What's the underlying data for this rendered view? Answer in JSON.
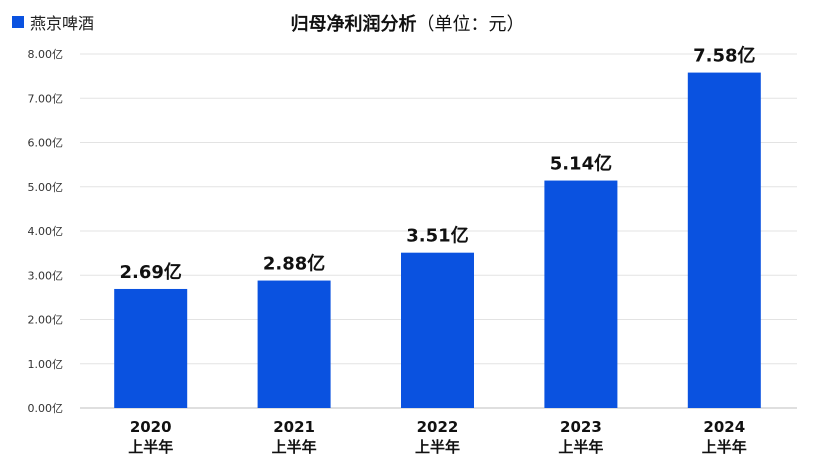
{
  "chart_data": {
    "type": "bar",
    "title": "归母净利润分析",
    "subtitle": "（单位：元）",
    "legend_position": "top-left",
    "grid": true,
    "series": [
      {
        "name": "燕京啤酒",
        "color": "#0a52e0",
        "values": [
          2.69,
          2.88,
          3.51,
          5.14,
          7.58
        ]
      }
    ],
    "categories": [
      [
        "2020",
        "上半年"
      ],
      [
        "2021",
        "上半年"
      ],
      [
        "2022",
        "上半年"
      ],
      [
        "2023",
        "上半年"
      ],
      [
        "2024",
        "上半年"
      ]
    ],
    "data_labels": [
      "2.69亿",
      "2.88亿",
      "3.51亿",
      "5.14亿",
      "7.58亿"
    ],
    "ylim": [
      0,
      8
    ],
    "y_ticks": [
      "0.00亿",
      "1.00亿",
      "2.00亿",
      "3.00亿",
      "4.00亿",
      "5.00亿",
      "6.00亿",
      "7.00亿",
      "8.00亿"
    ]
  }
}
